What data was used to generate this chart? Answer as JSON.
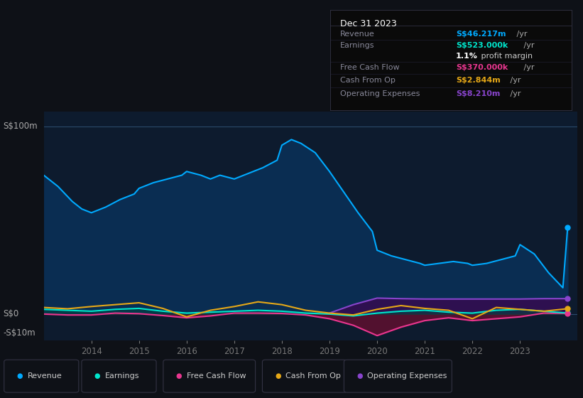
{
  "bg_color": "#0e1117",
  "plot_bg_color": "#0d1b2e",
  "grid_color": "#1e3a5f",
  "series": {
    "Revenue": {
      "color": "#00aaff",
      "fill_color": "#0a2d52",
      "years": [
        2013.0,
        2013.3,
        2013.6,
        2013.8,
        2014.0,
        2014.3,
        2014.6,
        2014.9,
        2015.0,
        2015.3,
        2015.6,
        2015.9,
        2016.0,
        2016.3,
        2016.5,
        2016.7,
        2017.0,
        2017.3,
        2017.6,
        2017.9,
        2018.0,
        2018.2,
        2018.4,
        2018.7,
        2019.0,
        2019.3,
        2019.6,
        2019.9,
        2020.0,
        2020.3,
        2020.6,
        2020.9,
        2021.0,
        2021.3,
        2021.6,
        2021.9,
        2022.0,
        2022.3,
        2022.6,
        2022.9,
        2023.0,
        2023.3,
        2023.6,
        2023.9,
        2024.0
      ],
      "values": [
        74,
        68,
        60,
        56,
        54,
        57,
        61,
        64,
        67,
        70,
        72,
        74,
        76,
        74,
        72,
        74,
        72,
        75,
        78,
        82,
        90,
        93,
        91,
        86,
        76,
        65,
        54,
        44,
        34,
        31,
        29,
        27,
        26,
        27,
        28,
        27,
        26,
        27,
        29,
        31,
        37,
        32,
        22,
        14,
        46.217
      ]
    },
    "Earnings": {
      "color": "#00e5cc",
      "fill_alpha": 0.3,
      "years": [
        2013.0,
        2013.5,
        2014.0,
        2014.5,
        2015.0,
        2015.5,
        2016.0,
        2016.5,
        2017.0,
        2017.5,
        2018.0,
        2018.5,
        2019.0,
        2019.5,
        2020.0,
        2020.5,
        2021.0,
        2021.5,
        2022.0,
        2022.5,
        2023.0,
        2023.5,
        2024.0
      ],
      "values": [
        2.5,
        2.0,
        1.5,
        2.5,
        3.0,
        1.5,
        0.5,
        1.0,
        1.5,
        2.0,
        1.5,
        0.5,
        0.0,
        -1.0,
        0.5,
        1.5,
        2.0,
        1.0,
        0.5,
        2.0,
        2.5,
        1.5,
        0.523
      ]
    },
    "Free Cash Flow": {
      "color": "#e8368f",
      "fill_color": "#5a1030",
      "years": [
        2013.0,
        2013.5,
        2014.0,
        2014.5,
        2015.0,
        2015.5,
        2016.0,
        2016.5,
        2017.0,
        2017.5,
        2018.0,
        2018.5,
        2019.0,
        2019.5,
        2020.0,
        2020.5,
        2021.0,
        2021.5,
        2022.0,
        2022.5,
        2023.0,
        2023.5,
        2024.0
      ],
      "values": [
        0.0,
        -0.5,
        -0.5,
        0.5,
        0.2,
        -0.8,
        -2.0,
        -1.0,
        0.5,
        0.5,
        0.3,
        -0.5,
        -2.5,
        -6.0,
        -11.5,
        -7.0,
        -3.5,
        -2.0,
        -3.5,
        -2.5,
        -1.5,
        0.5,
        0.37
      ]
    },
    "Cash From Op": {
      "color": "#e6a817",
      "years": [
        2013.0,
        2013.5,
        2014.0,
        2014.5,
        2015.0,
        2015.5,
        2016.0,
        2016.5,
        2017.0,
        2017.5,
        2018.0,
        2018.5,
        2019.0,
        2019.5,
        2020.0,
        2020.5,
        2021.0,
        2021.5,
        2022.0,
        2022.5,
        2023.0,
        2023.5,
        2024.0
      ],
      "values": [
        3.5,
        2.8,
        4.0,
        5.0,
        6.0,
        3.0,
        -1.5,
        2.0,
        4.0,
        6.5,
        5.0,
        2.0,
        0.5,
        -0.5,
        2.5,
        4.5,
        3.0,
        2.0,
        -2.5,
        3.5,
        2.5,
        1.5,
        2.844
      ]
    },
    "Operating Expenses": {
      "color": "#8844cc",
      "fill_color": "#2e1050",
      "years": [
        2019.0,
        2019.5,
        2020.0,
        2020.5,
        2021.0,
        2021.5,
        2022.0,
        2022.5,
        2023.0,
        2023.5,
        2024.0
      ],
      "values": [
        0.5,
        5.0,
        8.5,
        8.2,
        8.0,
        8.0,
        8.0,
        8.0,
        8.0,
        8.2,
        8.21
      ]
    }
  },
  "info_box": {
    "title": "Dec 31 2023",
    "title_color": "#ffffff",
    "bg_color": "#0a0a0a",
    "border_color": "#333344",
    "rows": [
      {
        "label": "Revenue",
        "value": "S$46.217m",
        "unit": " /yr",
        "value_color": "#00aaff",
        "bold": true
      },
      {
        "label": "Earnings",
        "value": "S$523.000k",
        "unit": " /yr",
        "value_color": "#00e5cc",
        "bold": true
      },
      {
        "label": "",
        "value": "1.1%",
        "extra": " profit margin",
        "unit": "",
        "value_color": "#ffffff",
        "bold": true
      },
      {
        "label": "Free Cash Flow",
        "value": "S$370.000k",
        "unit": " /yr",
        "value_color": "#e8368f",
        "bold": true
      },
      {
        "label": "Cash From Op",
        "value": "S$2.844m",
        "unit": " /yr",
        "value_color": "#e6a817",
        "bold": true
      },
      {
        "label": "Operating Expenses",
        "value": "S$8.210m",
        "unit": " /yr",
        "value_color": "#8844cc",
        "bold": true
      }
    ]
  },
  "legend": [
    {
      "label": "Revenue",
      "color": "#00aaff"
    },
    {
      "label": "Earnings",
      "color": "#00e5cc"
    },
    {
      "label": "Free Cash Flow",
      "color": "#e8368f"
    },
    {
      "label": "Cash From Op",
      "color": "#e6a817"
    },
    {
      "label": "Operating Expenses",
      "color": "#8844cc"
    }
  ],
  "ylim": [
    -14,
    108
  ],
  "xlim": [
    2013.0,
    2024.2
  ],
  "x_ticks": [
    2014,
    2015,
    2016,
    2017,
    2018,
    2019,
    2020,
    2021,
    2022,
    2023
  ],
  "y_label_100": "S$100m",
  "y_label_0": "S$0",
  "y_label_neg10": "-S$10m"
}
